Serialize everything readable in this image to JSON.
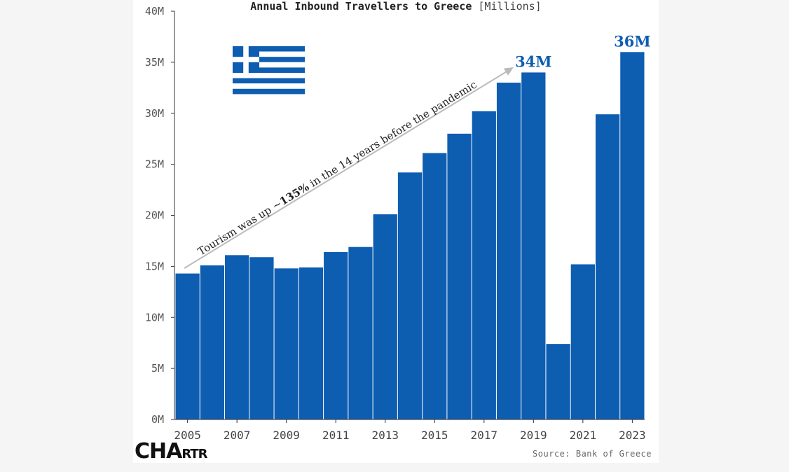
{
  "chart_data": {
    "type": "bar",
    "title": "Annual Inbound Travellers to Greece",
    "title_unit": "[Millions]",
    "categories": [
      "2005",
      "2006",
      "2007",
      "2008",
      "2009",
      "2010",
      "2011",
      "2012",
      "2013",
      "2014",
      "2015",
      "2016",
      "2017",
      "2018",
      "2019",
      "2020",
      "2021",
      "2022",
      "2023"
    ],
    "values": [
      14.3,
      15.1,
      16.1,
      15.9,
      14.8,
      14.9,
      16.4,
      16.9,
      20.1,
      24.2,
      26.1,
      28.0,
      30.2,
      33.0,
      34.0,
      7.4,
      15.2,
      29.9,
      36.0
    ],
    "x_tick_labels": [
      "2005",
      "2007",
      "2009",
      "2011",
      "2013",
      "2015",
      "2017",
      "2019",
      "2021",
      "2023"
    ],
    "y_ticks": [
      0,
      5,
      10,
      15,
      20,
      25,
      30,
      35,
      40
    ],
    "y_tick_labels": [
      "0M",
      "5M",
      "10M",
      "15M",
      "20M",
      "25M",
      "30M",
      "35M",
      "40M"
    ],
    "ylim": [
      0,
      40
    ],
    "bar_color": "#0d5db1",
    "grid": false,
    "value_labels": [
      {
        "category": "2019",
        "text": "34M"
      },
      {
        "category": "2023",
        "text": "36M"
      }
    ],
    "annotation": {
      "prefix": "Tourism was up ~",
      "bold": "135%",
      "suffix": " in the 14 years before the pandemic"
    }
  },
  "source": "Source: Bank of Greece",
  "logo": {
    "big": "CHA",
    "small": "RTR"
  },
  "colors": {
    "accent": "#0d5db1",
    "flag_blue": "#0d5db1"
  },
  "decor": {
    "flag": "greek-flag"
  }
}
